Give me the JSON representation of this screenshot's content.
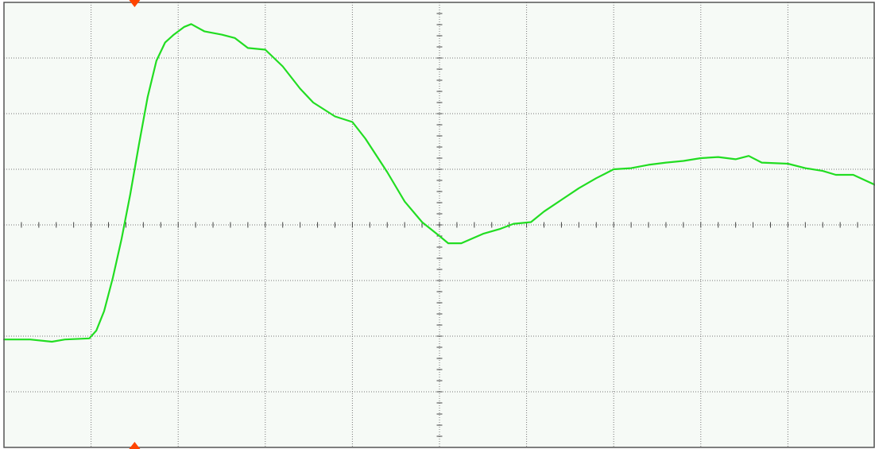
{
  "colors": {
    "background": "#f6faf6",
    "border": "#555555",
    "grid": "#777777",
    "trace": "#22dd22",
    "marker": "#ff4400"
  },
  "chart_data": {
    "type": "line",
    "title": "",
    "xlabel": "",
    "ylabel": "",
    "xlim": [
      0,
      10
    ],
    "ylim": [
      -4,
      4
    ],
    "grid": true,
    "x_divisions": 10,
    "y_divisions": 8,
    "minor_ticks_per_division": 5,
    "trigger_marker_x": 1.5,
    "series": [
      {
        "values": [
          [
            0.0,
            -2.06
          ],
          [
            0.3,
            -2.06
          ],
          [
            0.55,
            -2.1
          ],
          [
            0.7,
            -2.06
          ],
          [
            0.98,
            -2.04
          ],
          [
            1.06,
            -1.9
          ],
          [
            1.15,
            -1.55
          ],
          [
            1.25,
            -0.95
          ],
          [
            1.35,
            -0.25
          ],
          [
            1.45,
            0.55
          ],
          [
            1.55,
            1.45
          ],
          [
            1.65,
            2.3
          ],
          [
            1.75,
            2.95
          ],
          [
            1.85,
            3.28
          ],
          [
            1.95,
            3.42
          ],
          [
            2.07,
            3.56
          ],
          [
            2.15,
            3.61
          ],
          [
            2.3,
            3.48
          ],
          [
            2.5,
            3.42
          ],
          [
            2.65,
            3.36
          ],
          [
            2.8,
            3.18
          ],
          [
            3.0,
            3.15
          ],
          [
            3.2,
            2.85
          ],
          [
            3.4,
            2.45
          ],
          [
            3.55,
            2.2
          ],
          [
            3.8,
            1.95
          ],
          [
            4.0,
            1.85
          ],
          [
            4.15,
            1.55
          ],
          [
            4.4,
            0.95
          ],
          [
            4.6,
            0.42
          ],
          [
            4.8,
            0.05
          ],
          [
            5.0,
            -0.2
          ],
          [
            5.1,
            -0.33
          ],
          [
            5.25,
            -0.33
          ],
          [
            5.5,
            -0.16
          ],
          [
            5.7,
            -0.07
          ],
          [
            5.85,
            0.02
          ],
          [
            6.05,
            0.05
          ],
          [
            6.2,
            0.24
          ],
          [
            6.4,
            0.45
          ],
          [
            6.6,
            0.66
          ],
          [
            6.8,
            0.84
          ],
          [
            7.0,
            1.0
          ],
          [
            7.2,
            1.02
          ],
          [
            7.4,
            1.08
          ],
          [
            7.6,
            1.12
          ],
          [
            7.8,
            1.15
          ],
          [
            8.0,
            1.2
          ],
          [
            8.2,
            1.22
          ],
          [
            8.4,
            1.18
          ],
          [
            8.55,
            1.24
          ],
          [
            8.7,
            1.12
          ],
          [
            9.0,
            1.1
          ],
          [
            9.2,
            1.02
          ],
          [
            9.4,
            0.97
          ],
          [
            9.55,
            0.9
          ],
          [
            9.75,
            0.9
          ],
          [
            10.0,
            0.72
          ]
        ]
      }
    ]
  }
}
